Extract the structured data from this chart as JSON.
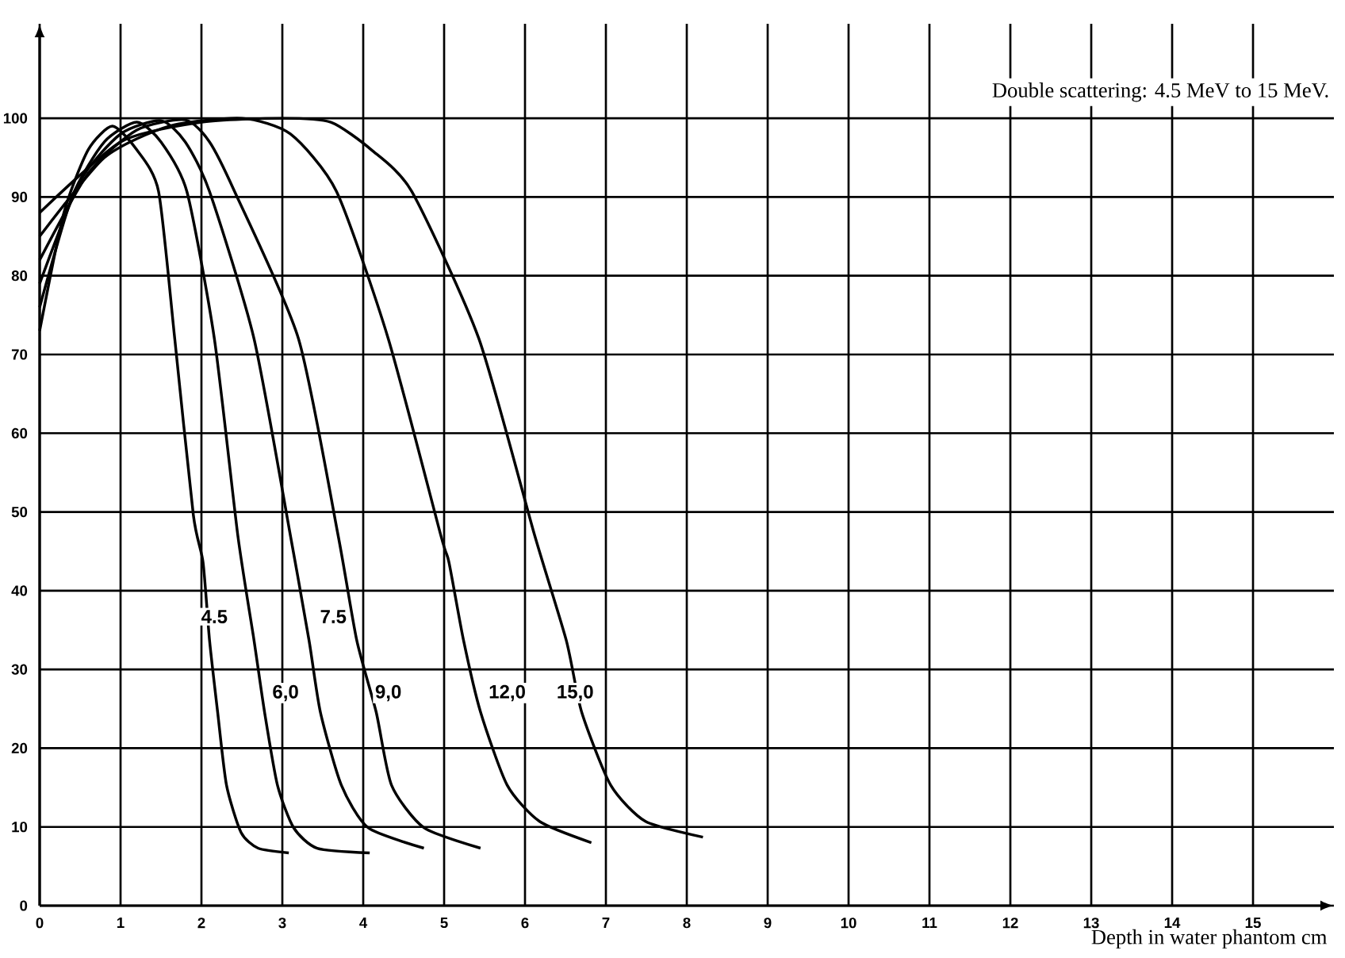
{
  "chart_data": {
    "type": "line",
    "title": "Double scattering: 4.5 MeV to 15 MeV.",
    "xlabel": "Depth in water phantom cm",
    "xlim": [
      0,
      16
    ],
    "ylim": [
      0,
      112
    ],
    "xticks": [
      0,
      1,
      2,
      3,
      4,
      5,
      6,
      7,
      8,
      9,
      10,
      11,
      12,
      13,
      14,
      15
    ],
    "yticks": [
      0,
      10,
      20,
      30,
      40,
      50,
      60,
      70,
      80,
      90,
      100
    ],
    "grid": true,
    "marker": "none",
    "line_style": "solid",
    "series": [
      {
        "color": "#000000",
        "x": [
          0,
          0.3,
          0.6,
          0.9,
          1.2,
          1.47,
          1.67,
          1.9,
          2.02,
          2.1,
          2.2,
          2.31,
          2.49,
          2.7,
          3.08
        ],
        "values": [
          73,
          88,
          96,
          99,
          96,
          90.7,
          72,
          49.6,
          43.6,
          33.7,
          24.6,
          15.3,
          9.3,
          7.3,
          6.7
        ]
      },
      {
        "color": "#000000",
        "x": [
          0,
          0.4,
          0.8,
          1.2,
          1.5,
          1.82,
          2.16,
          2.45,
          2.65,
          2.78,
          2.94,
          3.14,
          3.43,
          4.08
        ],
        "values": [
          76,
          90,
          97,
          99.5,
          97,
          90.7,
          72,
          47,
          33.7,
          24.6,
          15.3,
          9.9,
          7.3,
          6.7
        ]
      },
      {
        "color": "#000000",
        "x": [
          0,
          0.5,
          1,
          1.5,
          1.8,
          2.1,
          2.65,
          3.1,
          3.33,
          3.47,
          3.73,
          4.06,
          4.75
        ],
        "values": [
          79,
          92,
          98,
          99.7,
          97,
          90.7,
          72,
          47,
          33.7,
          24.6,
          15.3,
          9.9,
          7.3
        ]
      },
      {
        "color": "#000000",
        "x": [
          0,
          0.6,
          1.2,
          1.8,
          2.1,
          2.41,
          3.2,
          3.69,
          3.92,
          4.16,
          4.35,
          4.75,
          5.45
        ],
        "values": [
          82,
          93,
          98.5,
          99.8,
          97,
          90.7,
          72,
          47,
          33.7,
          24.6,
          15.3,
          9.9,
          7.3
        ]
      },
      {
        "color": "#000000",
        "x": [
          0,
          0.8,
          1.6,
          2.5,
          3.1,
          3.67,
          4.31,
          4.96,
          5.06,
          5.24,
          5.45,
          5.78,
          6.18,
          6.82
        ],
        "values": [
          85,
          95,
          99,
          100,
          98,
          90.7,
          72,
          47,
          43.6,
          33.7,
          24.6,
          15.3,
          10.7,
          8
        ]
      },
      {
        "color": "#000000",
        "x": [
          0,
          1,
          2,
          3,
          3.6,
          4.1,
          4.6,
          5.43,
          6.12,
          6.51,
          6.7,
          7.06,
          7.49,
          8.2
        ],
        "values": [
          88,
          97,
          99.5,
          100,
          99.5,
          96,
          90.7,
          72,
          47,
          33.7,
          24.6,
          15.3,
          10.7,
          8.7
        ]
      }
    ],
    "annotations": [
      {
        "text": "4.5",
        "x": 2.16,
        "y": 36.7
      },
      {
        "text": "6,0",
        "x": 3.04,
        "y": 27
      },
      {
        "text": "7.5",
        "x": 3.63,
        "y": 36.7
      },
      {
        "text": "9,0",
        "x": 4.31,
        "y": 27
      },
      {
        "text": "12,0",
        "x": 5.78,
        "y": 27
      },
      {
        "text": "15,0",
        "x": 6.62,
        "y": 27
      }
    ]
  }
}
